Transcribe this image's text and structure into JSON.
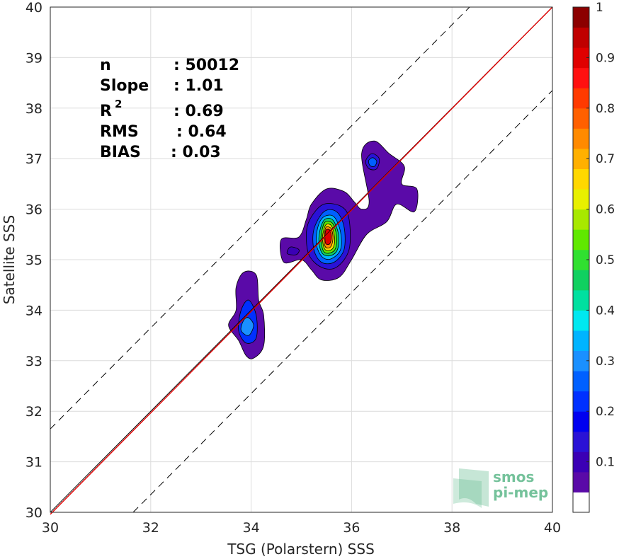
{
  "chart_data": {
    "type": "heatmap",
    "subtype": "density-contour-scatter",
    "xlabel": "TSG (Polarstern) SSS",
    "ylabel": "Satellite SSS",
    "xlim": [
      30,
      40
    ],
    "ylim": [
      30,
      40
    ],
    "xticks": [
      "30",
      "32",
      "34",
      "36",
      "38",
      "40"
    ],
    "yticks": [
      "30",
      "31",
      "32",
      "33",
      "34",
      "35",
      "36",
      "37",
      "38",
      "39",
      "40"
    ],
    "grid": true,
    "one_to_one_line": {
      "color": "#000000",
      "style": "solid",
      "from": [
        30,
        30
      ],
      "to": [
        40,
        40
      ]
    },
    "fit_line": {
      "color": "#e00000",
      "slope": 1.01,
      "intercept": -0.34
    },
    "bounds_lines": {
      "color": "#000000",
      "style": "dashed",
      "offset": 1.65
    },
    "stats": [
      {
        "label": "n",
        "value": ": 50012"
      },
      {
        "label": "Slope",
        "value": ": 1.01"
      },
      {
        "label": "R",
        "sup": "2",
        "value": ": 0.69"
      },
      {
        "label": "RMS",
        "value": ": 0.64"
      },
      {
        "label": "BIAS",
        "value": ": 0.03"
      }
    ],
    "clusters": [
      {
        "name": "cluster-low",
        "center": [
          33.95,
          33.9
        ],
        "levels": [
          {
            "level": 0.05,
            "points": [
              [
                33.85,
                34.75
              ],
              [
                34.1,
                34.7
              ],
              [
                34.15,
                34.2
              ],
              [
                34.25,
                33.9
              ],
              [
                34.25,
                33.3
              ],
              [
                34.05,
                33.05
              ],
              [
                33.9,
                33.1
              ],
              [
                33.75,
                33.4
              ],
              [
                33.55,
                33.7
              ],
              [
                33.7,
                34.0
              ],
              [
                33.7,
                34.45
              ]
            ]
          },
          {
            "level": 0.2,
            "points": [
              [
                33.95,
                34.2
              ],
              [
                34.1,
                33.9
              ],
              [
                34.1,
                33.45
              ],
              [
                33.9,
                33.35
              ],
              [
                33.75,
                33.6
              ],
              [
                33.8,
                34.0
              ]
            ]
          },
          {
            "level": 0.3,
            "points": [
              [
                33.95,
                33.85
              ],
              [
                34.05,
                33.7
              ],
              [
                33.95,
                33.5
              ],
              [
                33.8,
                33.6
              ],
              [
                33.85,
                33.8
              ]
            ]
          }
        ]
      },
      {
        "name": "cluster-main",
        "center": [
          35.55,
          35.45
        ],
        "levels": [
          {
            "level": 0.05,
            "points": [
              [
                35.5,
                36.4
              ],
              [
                35.85,
                36.35
              ],
              [
                36.05,
                36.15
              ],
              [
                36.2,
                36.0
              ],
              [
                36.35,
                36.15
              ],
              [
                36.2,
                37.1
              ],
              [
                36.45,
                37.35
              ],
              [
                36.75,
                37.1
              ],
              [
                37.05,
                36.85
              ],
              [
                37.0,
                36.5
              ],
              [
                37.3,
                36.4
              ],
              [
                37.25,
                35.95
              ],
              [
                36.9,
                36.1
              ],
              [
                36.7,
                35.75
              ],
              [
                36.3,
                35.5
              ],
              [
                36.0,
                35.0
              ],
              [
                35.75,
                34.65
              ],
              [
                35.4,
                34.6
              ],
              [
                35.2,
                34.8
              ],
              [
                35.0,
                35.0
              ],
              [
                34.65,
                34.95
              ],
              [
                34.6,
                35.4
              ],
              [
                34.95,
                35.45
              ],
              [
                35.1,
                35.8
              ],
              [
                35.2,
                36.1
              ]
            ]
          },
          {
            "level": 0.15,
            "points": [
              [
                35.45,
                36.1
              ],
              [
                35.8,
                36.05
              ],
              [
                35.95,
                35.8
              ],
              [
                35.95,
                35.2
              ],
              [
                35.7,
                34.85
              ],
              [
                35.4,
                34.85
              ],
              [
                35.15,
                35.1
              ],
              [
                35.1,
                35.55
              ],
              [
                35.2,
                35.85
              ]
            ]
          },
          {
            "level": 0.25,
            "points": [
              [
                35.45,
                35.95
              ],
              [
                35.7,
                35.95
              ],
              [
                35.85,
                35.65
              ],
              [
                35.85,
                35.2
              ],
              [
                35.65,
                34.95
              ],
              [
                35.4,
                34.95
              ],
              [
                35.25,
                35.2
              ],
              [
                35.25,
                35.6
              ]
            ]
          },
          {
            "level": 0.35,
            "points": [
              [
                35.45,
                35.85
              ],
              [
                35.65,
                35.85
              ],
              [
                35.78,
                35.55
              ],
              [
                35.78,
                35.2
              ],
              [
                35.6,
                35.02
              ],
              [
                35.42,
                35.05
              ],
              [
                35.3,
                35.3
              ],
              [
                35.33,
                35.65
              ]
            ]
          },
          {
            "level": 0.45,
            "points": [
              [
                35.47,
                35.8
              ],
              [
                35.63,
                35.78
              ],
              [
                35.74,
                35.5
              ],
              [
                35.72,
                35.2
              ],
              [
                35.58,
                35.08
              ],
              [
                35.42,
                35.12
              ],
              [
                35.35,
                35.35
              ],
              [
                35.38,
                35.62
              ]
            ]
          },
          {
            "level": 0.55,
            "points": [
              [
                35.48,
                35.75
              ],
              [
                35.62,
                35.72
              ],
              [
                35.7,
                35.48
              ],
              [
                35.68,
                35.22
              ],
              [
                35.56,
                35.13
              ],
              [
                35.44,
                35.17
              ],
              [
                35.39,
                35.4
              ],
              [
                35.42,
                35.62
              ]
            ]
          },
          {
            "level": 0.65,
            "points": [
              [
                35.5,
                35.7
              ],
              [
                35.6,
                35.67
              ],
              [
                35.66,
                35.45
              ],
              [
                35.64,
                35.25
              ],
              [
                35.55,
                35.18
              ],
              [
                35.46,
                35.22
              ],
              [
                35.42,
                35.42
              ],
              [
                35.45,
                35.6
              ]
            ]
          },
          {
            "level": 0.75,
            "points": [
              [
                35.5,
                35.65
              ],
              [
                35.59,
                35.62
              ],
              [
                35.63,
                35.45
              ],
              [
                35.6,
                35.28
              ],
              [
                35.53,
                35.23
              ],
              [
                35.47,
                35.27
              ],
              [
                35.45,
                35.45
              ],
              [
                35.47,
                35.58
              ]
            ]
          },
          {
            "level": 0.9,
            "points": [
              [
                35.51,
                35.6
              ],
              [
                35.57,
                35.58
              ],
              [
                35.6,
                35.45
              ],
              [
                35.57,
                35.32
              ],
              [
                35.52,
                35.3
              ],
              [
                35.48,
                35.33
              ],
              [
                35.47,
                35.46
              ],
              [
                35.48,
                35.56
              ]
            ]
          },
          {
            "level": 0.15,
            "points": [
              [
                36.4,
                37.1
              ],
              [
                36.55,
                37.0
              ],
              [
                36.5,
                36.8
              ],
              [
                36.35,
                36.8
              ],
              [
                36.28,
                36.95
              ]
            ]
          },
          {
            "level": 0.25,
            "points": [
              [
                36.42,
                37.02
              ],
              [
                36.5,
                36.95
              ],
              [
                36.46,
                36.85
              ],
              [
                36.37,
                36.86
              ],
              [
                36.34,
                36.96
              ]
            ]
          },
          {
            "level": 0.1,
            "points": [
              [
                34.78,
                35.25
              ],
              [
                34.95,
                35.2
              ],
              [
                34.9,
                35.1
              ],
              [
                34.72,
                35.12
              ]
            ]
          }
        ]
      }
    ],
    "colorbar": {
      "min": 0,
      "max": 1,
      "ticks": [
        "0.1",
        "0.2",
        "0.3",
        "0.4",
        "0.5",
        "0.6",
        "0.7",
        "0.8",
        "0.9",
        "1"
      ],
      "colors": [
        "#ffffff",
        "#5a0aa8",
        "#3b00b5",
        "#2a12d6",
        "#0000f0",
        "#0030ff",
        "#0060ff",
        "#1a90ff",
        "#00b4ff",
        "#00e8f0",
        "#00e0a0",
        "#10d060",
        "#30e030",
        "#60e800",
        "#a8e800",
        "#e8f000",
        "#ffd800",
        "#ffb000",
        "#ff8a00",
        "#ff6000",
        "#ff3a00",
        "#ff1010",
        "#e00000",
        "#c00000",
        "#8c0000"
      ]
    }
  },
  "logo": {
    "line1": "smos",
    "line2": "pi-mep",
    "color": "#5db88a"
  }
}
